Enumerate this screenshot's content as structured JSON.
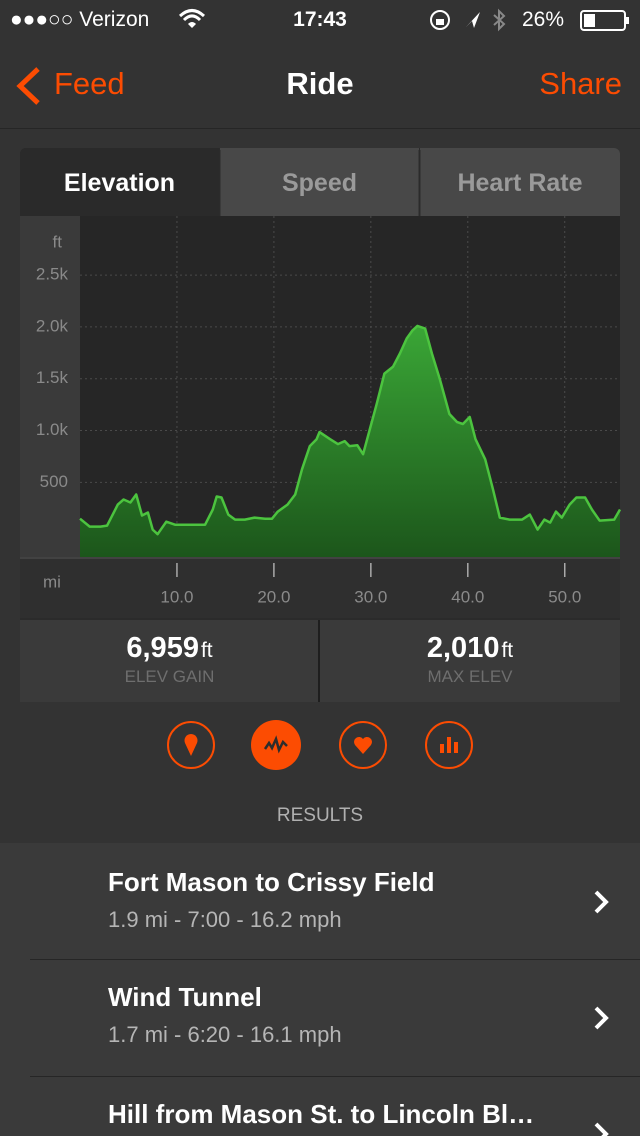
{
  "status_bar": {
    "carrier": "●●●○○ Verizon",
    "time": "17:43",
    "battery": "26%"
  },
  "nav": {
    "back": "Feed",
    "title": "Ride",
    "action": "Share"
  },
  "tabs": [
    "Elevation",
    "Speed",
    "Heart Rate"
  ],
  "chart_data": {
    "type": "area",
    "ylabel": "ft",
    "xlabel": "mi",
    "color": "#4cc43f",
    "grid": true,
    "x": [
      0.0,
      1.0,
      2.1,
      2.8,
      3.9,
      4.5,
      5.2,
      5.8,
      6.4,
      7.0,
      7.5,
      8.0,
      8.9,
      9.8,
      11.3,
      12.9,
      13.7,
      14.1,
      14.6,
      15.3,
      16.0,
      17.0,
      18.0,
      19.1,
      19.8,
      20.4,
      21.4,
      22.2,
      22.9,
      23.7,
      24.4,
      24.7,
      25.8,
      26.6,
      27.3,
      27.8,
      28.6,
      29.2,
      29.9,
      30.6,
      31.4,
      32.3,
      33.0,
      33.7,
      34.3,
      34.8,
      35.6,
      36.3,
      37.1,
      38.1,
      38.9,
      39.5,
      40.2,
      40.8,
      41.8,
      42.6,
      43.3,
      44.3,
      45.6,
      46.4,
      47.2,
      47.9,
      48.5,
      49.1,
      49.7,
      50.5,
      51.2,
      52.1,
      52.8,
      53.6,
      55.1,
      55.7
    ],
    "values": [
      150,
      73,
      73,
      83,
      286,
      335,
      306,
      383,
      180,
      209,
      44,
      0,
      121,
      92,
      92,
      92,
      238,
      364,
      354,
      189,
      141,
      141,
      160,
      150,
      150,
      218,
      286,
      383,
      626,
      850,
      917,
      985,
      917,
      869,
      898,
      850,
      859,
      772,
      1015,
      1257,
      1549,
      1617,
      1743,
      1888,
      1966,
      2010,
      1985,
      1743,
      1500,
      1160,
      1082,
      1063,
      1131,
      917,
      723,
      432,
      160,
      141,
      141,
      189,
      44,
      141,
      112,
      218,
      160,
      286,
      354,
      354,
      238,
      131,
      141,
      238
    ],
    "xlim": [
      0,
      55.7
    ],
    "ylim": [
      -220,
      3070
    ],
    "xticks": [
      {
        "value": 10,
        "label": "10.0"
      },
      {
        "value": 20,
        "label": "20.0"
      },
      {
        "value": 30,
        "label": "30.0"
      },
      {
        "value": 40,
        "label": "40.0"
      },
      {
        "value": 50,
        "label": "50.0"
      }
    ],
    "yticks": [
      500,
      {
        "value": 1000,
        "label": "1.0k"
      },
      {
        "value": 1500,
        "label": "1.5k"
      },
      {
        "value": 2000,
        "label": "2.0k"
      },
      {
        "value": 2500,
        "label": "2.5k"
      }
    ]
  },
  "stats": [
    {
      "value": "6,959",
      "unit": "ft",
      "label": "ELEV GAIN"
    },
    {
      "value": "2,010",
      "unit": "ft",
      "label": "MAX ELEV"
    }
  ],
  "results_header": "RESULTS",
  "results": [
    {
      "name": "Fort Mason to Crissy Field",
      "details": "1.9 mi - 7:00 - 16.2 mph"
    },
    {
      "name": "Wind Tunnel",
      "details": "1.7 mi - 6:20 - 16.1 mph"
    },
    {
      "name": "Hill from Mason St. to Lincoln Bl…",
      "details": ""
    }
  ]
}
